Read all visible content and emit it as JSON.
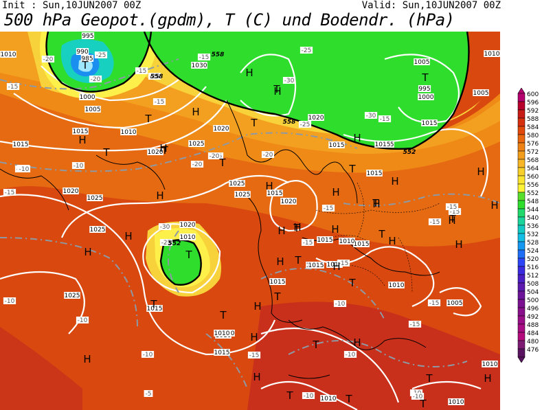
{
  "header": {
    "init": "Init : Sun,10JUN2007 00Z",
    "valid": "Valid: Sun,10JUN2007 00Z",
    "title": "500 hPa Geopot.(gpdm), T (C) und Bodendr. (hPa)"
  },
  "legend": {
    "levels": [
      "600",
      "596",
      "592",
      "588",
      "584",
      "580",
      "576",
      "572",
      "568",
      "564",
      "560",
      "556",
      "552",
      "548",
      "544",
      "540",
      "536",
      "532",
      "528",
      "524",
      "520",
      "516",
      "512",
      "508",
      "504",
      "500",
      "496",
      "492",
      "488",
      "484",
      "480",
      "476"
    ],
    "colors": [
      "#b5006f",
      "#b8002c",
      "#c81c16",
      "#d6300e",
      "#e24a0c",
      "#e9670e",
      "#ee8215",
      "#f29d1e",
      "#f6b626",
      "#f9cf2b",
      "#fbe430",
      "#fdf336",
      "#58df2b",
      "#2fde2d",
      "#1fd96c",
      "#1ad49c",
      "#12c9c4",
      "#13bde3",
      "#1498f1",
      "#1f6ef7",
      "#2c45f8",
      "#3a2be0",
      "#4a1fc6",
      "#5b19ad",
      "#6b149a",
      "#7b1190",
      "#8a0f8a",
      "#9a0e87",
      "#a80d83",
      "#b40c7d",
      "#7d1a73",
      "#5a1360"
    ]
  },
  "map": {
    "fill_colors": {
      "orange_red": "#d9480f",
      "orange": "#ec7a14",
      "amber": "#f3a020",
      "yellow": "#f8d23a",
      "yellow_bright": "#fdf04a",
      "green": "#2fde2d",
      "cyan": "#18d0c0",
      "blue": "#1b8ff0"
    },
    "pressure_labels": [
      "995",
      "990",
      "985",
      "1000",
      "1005",
      "1010",
      "1015",
      "1020",
      "1025",
      "1030",
      "1010",
      "1015",
      "1020",
      "1025",
      "1020",
      "1015",
      "1010",
      "1005",
      "1000",
      "995",
      "1005",
      "1015",
      "1015",
      "1015",
      "1020",
      "1025",
      "1020",
      "1015",
      "1015",
      "1010",
      "1015",
      "1015",
      "1025",
      "1015",
      "1010",
      "1005",
      "1015",
      "1010",
      "1015",
      "1015",
      "1015",
      "1010",
      "1010",
      "1010",
      "1010",
      "1010",
      "1025",
      "1010",
      "1015",
      "1020",
      "1025"
    ],
    "temp_labels": [
      "-25",
      "-20",
      "-15",
      "-10",
      "-25",
      "-15",
      "-20",
      "-15",
      "-15",
      "-10",
      "-10",
      "-15",
      "-20",
      "-25",
      "-30",
      "-25",
      "-30",
      "-20",
      "-25",
      "-15",
      "-20",
      "-10",
      "-15",
      "-15",
      "-15",
      "-15",
      "-10",
      "-10",
      "-10",
      "-15",
      "-15",
      "-5",
      "-10",
      "-10",
      "-10",
      "-10",
      "-10",
      "-15",
      "-30",
      "-25",
      "-15",
      "-15"
    ],
    "geopot_labels": [
      "558",
      "558",
      "552",
      "558",
      "552"
    ],
    "highs": [
      "H",
      "H",
      "H",
      "H",
      "H",
      "H",
      "H",
      "H",
      "H",
      "H",
      "H",
      "H",
      "H",
      "H",
      "H",
      "H",
      "H",
      "H",
      "H",
      "H",
      "H",
      "H",
      "H",
      "H",
      "H",
      "H",
      "H",
      "H",
      "H"
    ],
    "lows": [
      "T",
      "T",
      "T",
      "T",
      "T",
      "T",
      "T",
      "T",
      "T",
      "T",
      "T",
      "T",
      "T",
      "T",
      "T",
      "T",
      "T",
      "T",
      "T",
      "T",
      "T",
      "T",
      "T",
      "T"
    ]
  }
}
